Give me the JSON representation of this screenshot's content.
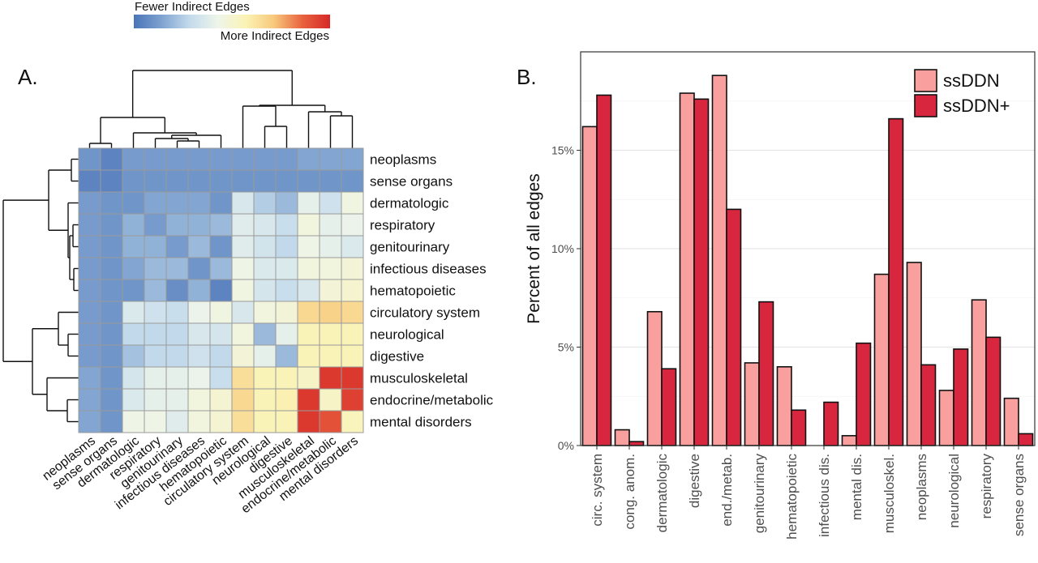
{
  "colorbar": {
    "low_label": "Fewer Indirect Edges",
    "high_label": "More Indirect Edges",
    "colors": [
      "#4a74b8",
      "#7fa3d0",
      "#c4dbec",
      "#eef5ea",
      "#fbf3b4",
      "#f7c87c",
      "#e9633f",
      "#d62828"
    ]
  },
  "panel_a": {
    "label": "A."
  },
  "panel_b": {
    "label": "B."
  },
  "chart_data": [
    {
      "type": "heatmap",
      "rows": [
        "neoplasms",
        "sense organs",
        "dermatologic",
        "respiratory",
        "genitourinary",
        "infectious diseases",
        "hematopoietic",
        "circulatory system",
        "neurological",
        "digestive",
        "musculoskeletal",
        "endocrine/metabolic",
        "mental disorders"
      ],
      "columns": [
        "neoplasms",
        "sense organs",
        "dermatologic",
        "respiratory",
        "genitourinary",
        "infectious diseases",
        "hematopoietic",
        "circulatory system",
        "neurological",
        "digestive",
        "musculoskeletal",
        "endocrine/metabolic",
        "mental disorders"
      ],
      "scale": [
        0,
        1
      ],
      "values": [
        [
          0.1,
          0.05,
          0.12,
          0.12,
          0.12,
          0.12,
          0.12,
          0.12,
          0.12,
          0.12,
          0.15,
          0.15,
          0.15
        ],
        [
          0.05,
          0.05,
          0.1,
          0.1,
          0.1,
          0.1,
          0.1,
          0.1,
          0.1,
          0.1,
          0.1,
          0.1,
          0.1
        ],
        [
          0.12,
          0.1,
          0.1,
          0.15,
          0.15,
          0.15,
          0.1,
          0.35,
          0.25,
          0.2,
          0.4,
          0.32,
          0.45
        ],
        [
          0.12,
          0.1,
          0.18,
          0.12,
          0.18,
          0.18,
          0.2,
          0.38,
          0.35,
          0.3,
          0.46,
          0.4,
          0.42
        ],
        [
          0.12,
          0.1,
          0.18,
          0.18,
          0.12,
          0.2,
          0.1,
          0.38,
          0.33,
          0.28,
          0.44,
          0.4,
          0.36
        ],
        [
          0.12,
          0.1,
          0.15,
          0.2,
          0.2,
          0.1,
          0.2,
          0.44,
          0.36,
          0.36,
          0.46,
          0.46,
          0.48
        ],
        [
          0.12,
          0.1,
          0.1,
          0.2,
          0.08,
          0.18,
          0.05,
          0.45,
          0.34,
          0.3,
          0.35,
          0.48,
          0.5
        ],
        [
          0.12,
          0.1,
          0.36,
          0.32,
          0.3,
          0.42,
          0.45,
          0.35,
          0.46,
          0.48,
          0.66,
          0.68,
          0.66
        ],
        [
          0.12,
          0.1,
          0.28,
          0.28,
          0.28,
          0.35,
          0.34,
          0.46,
          0.2,
          0.4,
          0.56,
          0.56,
          0.56
        ],
        [
          0.12,
          0.1,
          0.22,
          0.28,
          0.28,
          0.32,
          0.28,
          0.48,
          0.4,
          0.2,
          0.56,
          0.56,
          0.56
        ],
        [
          0.15,
          0.1,
          0.34,
          0.4,
          0.4,
          0.42,
          0.3,
          0.64,
          0.56,
          0.56,
          0.52,
          0.96,
          0.96
        ],
        [
          0.15,
          0.1,
          0.36,
          0.4,
          0.4,
          0.46,
          0.49,
          0.66,
          0.56,
          0.58,
          0.96,
          0.52,
          0.94
        ],
        [
          0.15,
          0.1,
          0.44,
          0.44,
          0.38,
          0.46,
          0.49,
          0.64,
          0.56,
          0.56,
          0.96,
          0.9,
          0.55
        ]
      ]
    },
    {
      "type": "bar",
      "categories": [
        "circ. system",
        "cong. anom.",
        "dermatologic",
        "digestive",
        "end./metab.",
        "genitourinary",
        "hematopoietic",
        "infectious dis.",
        "mental dis.",
        "musculoskel.",
        "neoplasms",
        "neurological",
        "respiratory",
        "sense organs"
      ],
      "series": [
        {
          "name": "ssDDN",
          "color": "#f9a09e",
          "values": [
            16.2,
            0.8,
            6.8,
            17.9,
            18.8,
            4.2,
            4.0,
            0.0,
            0.5,
            8.7,
            9.3,
            2.8,
            7.4,
            2.4
          ]
        },
        {
          "name": "ssDDN+",
          "color": "#d7263d",
          "values": [
            17.8,
            0.2,
            3.9,
            17.6,
            12.0,
            7.3,
            1.8,
            2.2,
            5.2,
            16.6,
            4.1,
            4.9,
            5.5,
            0.6
          ]
        }
      ],
      "xlabel": "",
      "ylabel": "Percent of all edges",
      "ylim": [
        0,
        20
      ],
      "yticks": [
        0,
        5,
        10,
        15
      ],
      "ytick_labels": [
        "0%",
        "5%",
        "10%",
        "15%"
      ],
      "grid": true,
      "legend_position": "top-right"
    }
  ]
}
